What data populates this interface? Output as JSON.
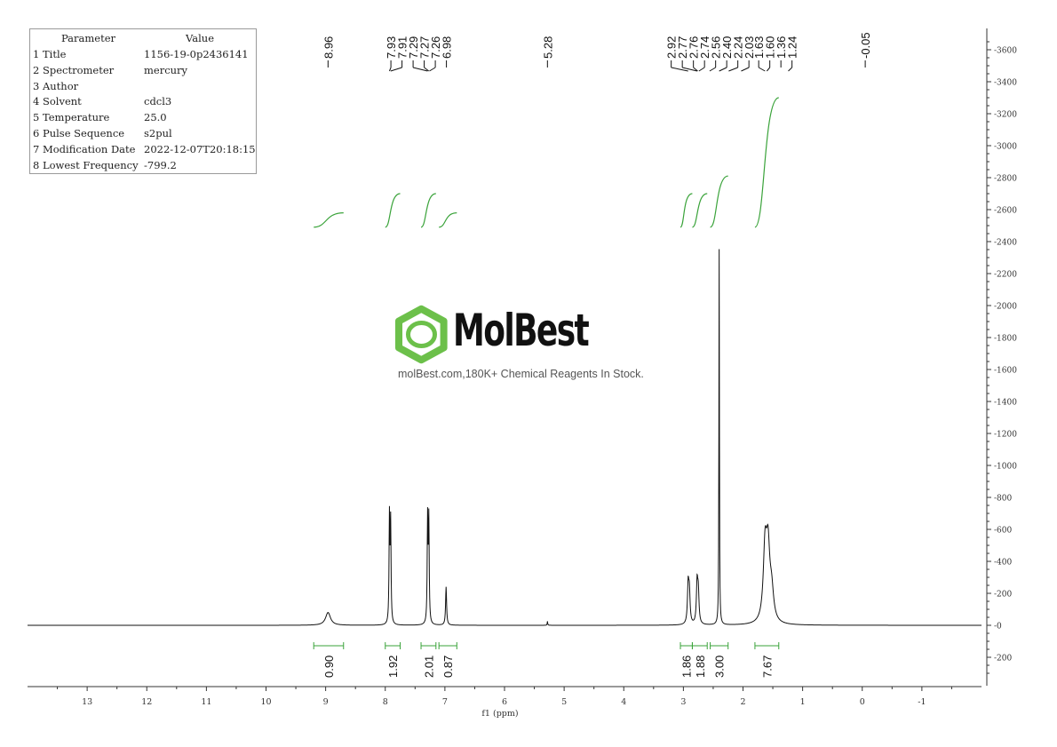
{
  "parameters": {
    "header": {
      "param": "Parameter",
      "value": "Value"
    },
    "rows": [
      {
        "param": "1 Title",
        "value": "1156-19-0p2436141"
      },
      {
        "param": "2 Spectrometer",
        "value": "mercury"
      },
      {
        "param": "3 Author",
        "value": ""
      },
      {
        "param": "4 Solvent",
        "value": "cdcl3"
      },
      {
        "param": "5 Temperature",
        "value": "25.0"
      },
      {
        "param": "6 Pulse Sequence",
        "value": "s2pul"
      },
      {
        "param": "7 Modification Date",
        "value": "2022-12-07T20:18:15"
      },
      {
        "param": "8 Lowest Frequency",
        "value": "-799.2"
      }
    ]
  },
  "watermark": {
    "brand": "MolBest",
    "tagline": "molBest.com,180K+ Chemical Reagents In Stock.",
    "logo_icon": "benzene-hexagon-icon",
    "accent_color": "#6cc04a"
  },
  "chart_data": {
    "type": "line",
    "xlabel": "f1 (ppm)",
    "x_reversed": true,
    "xlim": [
      14.0,
      -2.0
    ],
    "ylim": [
      -400,
      3700
    ],
    "x_ticks": [
      "13",
      "12",
      "11",
      "10",
      "9",
      "8",
      "7",
      "6",
      "5",
      "4",
      "3",
      "2",
      "1",
      "0",
      "-1"
    ],
    "y_ticks": [
      "-200",
      "0",
      "200",
      "400",
      "600",
      "800",
      "1000",
      "1200",
      "1400",
      "1600",
      "1800",
      "2000",
      "2200",
      "2400",
      "2600",
      "2800",
      "3000",
      "3200",
      "3400",
      "3600"
    ],
    "peaks": [
      {
        "ppm": 8.96,
        "height": 80,
        "width": 0.05
      },
      {
        "ppm": 7.93,
        "height": 660,
        "width": 0.008
      },
      {
        "ppm": 7.91,
        "height": 620,
        "width": 0.008
      },
      {
        "ppm": 7.29,
        "height": 650,
        "width": 0.008
      },
      {
        "ppm": 7.27,
        "height": 640,
        "width": 0.008
      },
      {
        "ppm": 6.98,
        "height": 240,
        "width": 0.01
      },
      {
        "ppm": 5.28,
        "height": 25,
        "width": 0.005
      },
      {
        "ppm": 2.92,
        "height": 240,
        "width": 0.014
      },
      {
        "ppm": 2.9,
        "height": 190,
        "width": 0.014
      },
      {
        "ppm": 2.77,
        "height": 250,
        "width": 0.014
      },
      {
        "ppm": 2.75,
        "height": 190,
        "width": 0.014
      },
      {
        "ppm": 2.4,
        "height": 2350,
        "width": 0.005
      },
      {
        "ppm": 1.63,
        "height": 450,
        "width": 0.035
      },
      {
        "ppm": 1.58,
        "height": 420,
        "width": 0.035
      },
      {
        "ppm": 1.52,
        "height": 180,
        "width": 0.04
      }
    ],
    "peak_labels": {
      "groups": [
        {
          "labels": [
            "8.96"
          ],
          "ppm": [
            8.96
          ]
        },
        {
          "labels": [
            "7.93",
            "7.91",
            "7.29",
            "7.27",
            "7.26",
            "6.98"
          ],
          "ppm": [
            7.93,
            7.91,
            7.29,
            7.27,
            7.26,
            6.98
          ]
        },
        {
          "labels": [
            "5.28"
          ],
          "ppm": [
            5.28
          ]
        },
        {
          "labels": [
            "2.92",
            "2.77",
            "2.76",
            "2.74",
            "2.56",
            "2.40",
            "2.24",
            "2.03"
          ],
          "ppm": [
            2.92,
            2.77,
            2.76,
            2.74,
            2.56,
            2.4,
            2.24,
            2.03
          ]
        },
        {
          "labels": [
            "1.63",
            "1.60",
            "1.36",
            "1.24"
          ],
          "ppm": [
            1.63,
            1.6,
            1.36,
            1.24
          ]
        },
        {
          "labels": [
            "-0.05"
          ],
          "ppm": [
            -0.05
          ]
        }
      ]
    },
    "integrals": [
      {
        "from": 9.2,
        "to": 8.7,
        "value": "0.90",
        "curve_low": 2490,
        "curve_high": 2580
      },
      {
        "from": 8.0,
        "to": 7.75,
        "value": "1.92",
        "curve_low": 2490,
        "curve_high": 2700
      },
      {
        "from": 7.4,
        "to": 7.15,
        "value": "2.01",
        "curve_low": 2490,
        "curve_high": 2700
      },
      {
        "from": 7.1,
        "to": 6.8,
        "value": "0.87",
        "curve_low": 2490,
        "curve_high": 2580
      },
      {
        "from": 3.05,
        "to": 2.85,
        "value": "1.86",
        "curve_low": 2490,
        "curve_high": 2700
      },
      {
        "from": 2.85,
        "to": 2.6,
        "value": "1.88",
        "curve_low": 2490,
        "curve_high": 2700
      },
      {
        "from": 2.55,
        "to": 2.25,
        "value": "3.00",
        "curve_low": 2490,
        "curve_high": 2810
      },
      {
        "from": 1.8,
        "to": 1.4,
        "value": "7.67",
        "curve_low": 2490,
        "curve_high": 3300
      }
    ],
    "colors": {
      "spectrum": "#111111",
      "integral": "#3aa33a",
      "axis": "#333333",
      "labels": "#111111"
    }
  }
}
